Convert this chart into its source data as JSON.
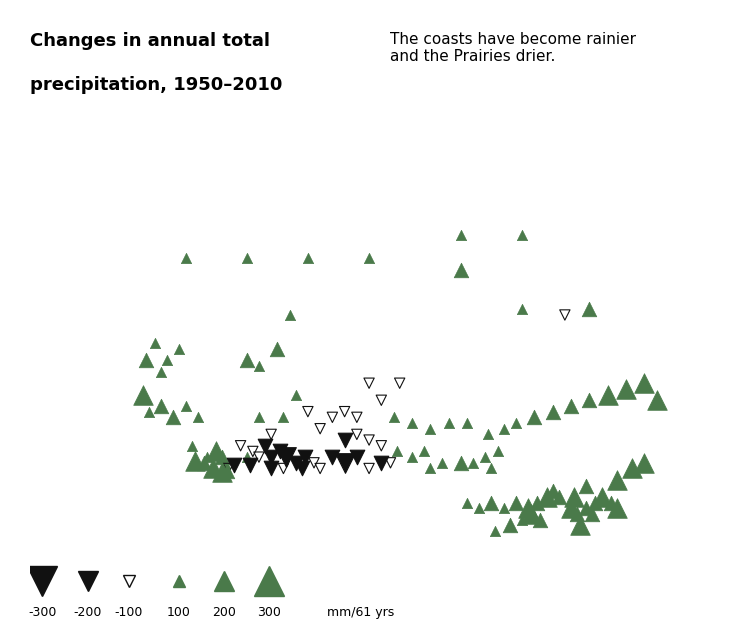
{
  "title_line1": "Changes in annual total",
  "title_line2": "precipitation, 1950–2010",
  "subtitle": "The coasts have become rainier\nand the Prairies drier.",
  "legend_values": [
    -300,
    -200,
    -100,
    100,
    200,
    300
  ],
  "legend_label": "mm/61 yrs",
  "background_color": "#ffffff",
  "map_border_color": "#aaaaaa",
  "map_face_color": "#ffffff",
  "province_border_color": "#888888",
  "green_color": "#4a7a4a",
  "black_color": "#111111",
  "title_fontsize": 13,
  "subtitle_fontsize": 11,
  "stations": [
    {
      "lon": -135.0,
      "lat": 60.5,
      "value": 100
    },
    {
      "lon": -133.0,
      "lat": 59.0,
      "value": 150
    },
    {
      "lon": -136.5,
      "lat": 59.0,
      "value": 200
    },
    {
      "lon": -131.0,
      "lat": 60.0,
      "value": 100
    },
    {
      "lon": -137.0,
      "lat": 56.0,
      "value": 300
    },
    {
      "lon": -134.0,
      "lat": 55.0,
      "value": 200
    },
    {
      "lon": -130.0,
      "lat": 55.0,
      "value": 150
    },
    {
      "lon": -128.0,
      "lat": 54.0,
      "value": 100
    },
    {
      "lon": -125.0,
      "lat": 51.0,
      "value": 300
    },
    {
      "lon": -124.0,
      "lat": 50.5,
      "value": 200
    },
    {
      "lon": -123.5,
      "lat": 50.0,
      "value": 100
    },
    {
      "lon": -123.0,
      "lat": 49.5,
      "value": -100
    },
    {
      "lon": -122.0,
      "lat": 49.8,
      "value": -200
    },
    {
      "lon": -124.0,
      "lat": 49.2,
      "value": 300
    },
    {
      "lon": -123.2,
      "lat": 49.3,
      "value": 200
    },
    {
      "lon": -125.5,
      "lat": 49.5,
      "value": 300
    },
    {
      "lon": -126.5,
      "lat": 50.5,
      "value": 100
    },
    {
      "lon": -127.0,
      "lat": 50.0,
      "value": 200
    },
    {
      "lon": -128.5,
      "lat": 50.2,
      "value": 300
    },
    {
      "lon": -129.0,
      "lat": 51.5,
      "value": 100
    },
    {
      "lon": -132.0,
      "lat": 54.0,
      "value": 200
    },
    {
      "lon": -136.0,
      "lat": 54.5,
      "value": 100
    },
    {
      "lon": -134.0,
      "lat": 58.0,
      "value": 100
    },
    {
      "lon": -120.0,
      "lat": 59.0,
      "value": 200
    },
    {
      "lon": -118.0,
      "lat": 58.5,
      "value": 100
    },
    {
      "lon": -115.0,
      "lat": 60.0,
      "value": 200
    },
    {
      "lon": -113.0,
      "lat": 63.0,
      "value": 100
    },
    {
      "lon": -85.0,
      "lat": 67.0,
      "value": 200
    },
    {
      "lon": -75.0,
      "lat": 63.5,
      "value": 100
    },
    {
      "lon": -68.0,
      "lat": 63.0,
      "value": -100
    },
    {
      "lon": -64.0,
      "lat": 63.5,
      "value": 200
    },
    {
      "lon": -130.0,
      "lat": 68.0,
      "value": 100
    },
    {
      "lon": -120.0,
      "lat": 68.0,
      "value": 100
    },
    {
      "lon": -110.0,
      "lat": 68.0,
      "value": 100
    },
    {
      "lon": -100.0,
      "lat": 68.0,
      "value": 100
    },
    {
      "lon": -85.0,
      "lat": 70.0,
      "value": 100
    },
    {
      "lon": -75.0,
      "lat": 70.0,
      "value": 100
    },
    {
      "lon": -119.0,
      "lat": 51.0,
      "value": -100
    },
    {
      "lon": -117.0,
      "lat": 51.5,
      "value": -200
    },
    {
      "lon": -116.0,
      "lat": 50.5,
      "value": -200
    },
    {
      "lon": -114.5,
      "lat": 51.0,
      "value": -200
    },
    {
      "lon": -113.5,
      "lat": 50.5,
      "value": -300
    },
    {
      "lon": -112.0,
      "lat": 50.0,
      "value": -200
    },
    {
      "lon": -110.5,
      "lat": 50.5,
      "value": -200
    },
    {
      "lon": -109.0,
      "lat": 50.0,
      "value": -100
    },
    {
      "lon": -118.0,
      "lat": 50.5,
      "value": -100
    },
    {
      "lon": -120.0,
      "lat": 50.5,
      "value": 100
    },
    {
      "lon": -121.0,
      "lat": 51.5,
      "value": -100
    },
    {
      "lon": -119.5,
      "lat": 49.8,
      "value": -200
    },
    {
      "lon": -116.0,
      "lat": 49.5,
      "value": -200
    },
    {
      "lon": -114.0,
      "lat": 49.5,
      "value": -100
    },
    {
      "lon": -111.0,
      "lat": 49.5,
      "value": -200
    },
    {
      "lon": -108.0,
      "lat": 49.5,
      "value": -100
    },
    {
      "lon": -106.0,
      "lat": 50.5,
      "value": -200
    },
    {
      "lon": -104.0,
      "lat": 50.0,
      "value": -300
    },
    {
      "lon": -102.0,
      "lat": 50.5,
      "value": -200
    },
    {
      "lon": -100.0,
      "lat": 49.5,
      "value": -100
    },
    {
      "lon": -98.0,
      "lat": 50.0,
      "value": -200
    },
    {
      "lon": -96.5,
      "lat": 50.0,
      "value": -100
    },
    {
      "lon": -104.0,
      "lat": 52.0,
      "value": -200
    },
    {
      "lon": -102.0,
      "lat": 52.5,
      "value": -100
    },
    {
      "lon": -100.0,
      "lat": 52.0,
      "value": -100
    },
    {
      "lon": -98.0,
      "lat": 51.5,
      "value": -100
    },
    {
      "lon": -95.5,
      "lat": 51.0,
      "value": 100
    },
    {
      "lon": -93.0,
      "lat": 50.5,
      "value": 100
    },
    {
      "lon": -91.0,
      "lat": 51.0,
      "value": 100
    },
    {
      "lon": -90.0,
      "lat": 49.5,
      "value": 100
    },
    {
      "lon": -88.0,
      "lat": 50.0,
      "value": 100
    },
    {
      "lon": -85.0,
      "lat": 50.0,
      "value": 200
    },
    {
      "lon": -83.0,
      "lat": 50.0,
      "value": 100
    },
    {
      "lon": -81.0,
      "lat": 50.5,
      "value": 100
    },
    {
      "lon": -80.0,
      "lat": 49.5,
      "value": 100
    },
    {
      "lon": -79.0,
      "lat": 51.0,
      "value": 100
    },
    {
      "lon": -84.0,
      "lat": 46.5,
      "value": 100
    },
    {
      "lon": -82.0,
      "lat": 46.0,
      "value": 100
    },
    {
      "lon": -80.0,
      "lat": 46.5,
      "value": 200
    },
    {
      "lon": -78.0,
      "lat": 46.0,
      "value": 100
    },
    {
      "lon": -76.0,
      "lat": 46.5,
      "value": 200
    },
    {
      "lon": -74.0,
      "lat": 46.0,
      "value": 300
    },
    {
      "lon": -72.5,
      "lat": 46.5,
      "value": 200
    },
    {
      "lon": -71.0,
      "lat": 47.0,
      "value": 300
    },
    {
      "lon": -70.0,
      "lat": 47.5,
      "value": 200
    },
    {
      "lon": -69.0,
      "lat": 47.0,
      "value": 200
    },
    {
      "lon": -66.5,
      "lat": 47.0,
      "value": 300
    },
    {
      "lon": -64.5,
      "lat": 46.0,
      "value": 200
    },
    {
      "lon": -63.0,
      "lat": 46.5,
      "value": 200
    },
    {
      "lon": -62.0,
      "lat": 47.0,
      "value": 300
    },
    {
      "lon": -60.5,
      "lat": 46.5,
      "value": 200
    },
    {
      "lon": -59.5,
      "lat": 46.0,
      "value": 300
    },
    {
      "lon": -63.5,
      "lat": 45.5,
      "value": 200
    },
    {
      "lon": -65.5,
      "lat": 44.5,
      "value": 300
    },
    {
      "lon": -66.0,
      "lat": 45.5,
      "value": 200
    },
    {
      "lon": -67.0,
      "lat": 46.0,
      "value": 300
    },
    {
      "lon": -79.5,
      "lat": 44.0,
      "value": 100
    },
    {
      "lon": -77.0,
      "lat": 44.5,
      "value": 200
    },
    {
      "lon": -75.0,
      "lat": 45.0,
      "value": 100
    },
    {
      "lon": -73.5,
      "lat": 45.5,
      "value": 300
    },
    {
      "lon": -72.0,
      "lat": 45.0,
      "value": 200
    },
    {
      "lon": -106.0,
      "lat": 54.0,
      "value": -100
    },
    {
      "lon": -104.0,
      "lat": 54.5,
      "value": -100
    },
    {
      "lon": -102.0,
      "lat": 54.0,
      "value": -100
    },
    {
      "lon": -96.0,
      "lat": 54.0,
      "value": 100
    },
    {
      "lon": -93.0,
      "lat": 53.5,
      "value": 100
    },
    {
      "lon": -90.0,
      "lat": 53.0,
      "value": 100
    },
    {
      "lon": -87.0,
      "lat": 53.5,
      "value": 100
    },
    {
      "lon": -84.0,
      "lat": 53.5,
      "value": 100
    },
    {
      "lon": -80.5,
      "lat": 52.5,
      "value": 100
    },
    {
      "lon": -78.0,
      "lat": 53.0,
      "value": 100
    },
    {
      "lon": -76.0,
      "lat": 53.5,
      "value": 100
    },
    {
      "lon": -73.0,
      "lat": 54.0,
      "value": 200
    },
    {
      "lon": -70.0,
      "lat": 54.5,
      "value": 200
    },
    {
      "lon": -67.0,
      "lat": 55.0,
      "value": 200
    },
    {
      "lon": -64.0,
      "lat": 55.5,
      "value": 200
    },
    {
      "lon": -61.0,
      "lat": 56.0,
      "value": 300
    },
    {
      "lon": -58.0,
      "lat": 56.5,
      "value": 300
    },
    {
      "lon": -55.0,
      "lat": 57.0,
      "value": 300
    },
    {
      "lon": -53.0,
      "lat": 55.5,
      "value": 300
    },
    {
      "lon": -55.0,
      "lat": 50.0,
      "value": 300
    },
    {
      "lon": -57.0,
      "lat": 49.5,
      "value": 300
    },
    {
      "lon": -59.5,
      "lat": 48.5,
      "value": 300
    },
    {
      "lon": -64.5,
      "lat": 48.0,
      "value": 200
    },
    {
      "lon": -100.0,
      "lat": 57.0,
      "value": -100
    },
    {
      "lon": -98.0,
      "lat": 55.5,
      "value": -100
    },
    {
      "lon": -95.0,
      "lat": 57.0,
      "value": -100
    },
    {
      "lon": -112.0,
      "lat": 56.0,
      "value": 100
    },
    {
      "lon": -114.0,
      "lat": 54.0,
      "value": 100
    },
    {
      "lon": -116.0,
      "lat": 52.5,
      "value": -100
    },
    {
      "lon": -118.0,
      "lat": 54.0,
      "value": 100
    },
    {
      "lon": -110.0,
      "lat": 54.5,
      "value": -100
    },
    {
      "lon": -108.0,
      "lat": 53.0,
      "value": -100
    }
  ]
}
